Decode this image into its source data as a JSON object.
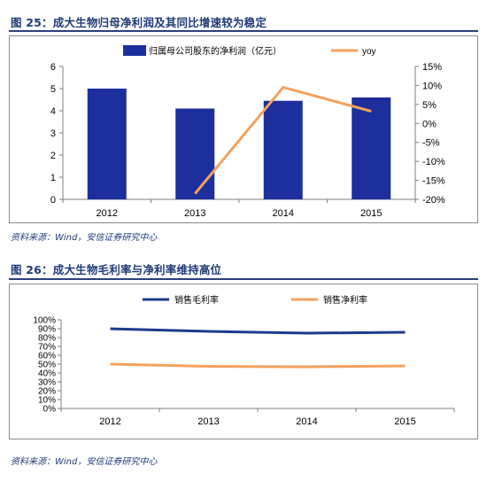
{
  "figures": [
    {
      "title": "图 25：成大生物归母净利润及其同比增速较为稳定",
      "source": "资料来源：Wind，安信证券研究中心"
    },
    {
      "title": "图 26：成大生物毛利率与净利率维持高位",
      "source": "资料来源：Wind，安信证券研究中心"
    }
  ],
  "chart_data": [
    {
      "type": "bar",
      "categories": [
        "2012",
        "2013",
        "2014",
        "2015"
      ],
      "series": [
        {
          "name": "归属母公司股东的净利润（亿元）",
          "type": "bar",
          "axis": "left",
          "values": [
            5.0,
            4.1,
            4.45,
            4.6
          ],
          "color": "#1c2f9c"
        },
        {
          "name": "yoy",
          "type": "line",
          "axis": "right",
          "values": [
            null,
            -18.5,
            9.5,
            3.2
          ],
          "color": "#f5a15c"
        }
      ],
      "left_axis": {
        "ylim": [
          0,
          6
        ],
        "ticks": [
          "0",
          "1",
          "2",
          "3",
          "4",
          "5",
          "6"
        ]
      },
      "right_axis": {
        "ylim": [
          -20,
          15
        ],
        "ticks": [
          "-20%",
          "-15%",
          "-10%",
          "-5%",
          "0%",
          "5%",
          "10%",
          "15%"
        ]
      },
      "legend": "top",
      "grid": false
    },
    {
      "type": "line",
      "categories": [
        "2012",
        "2013",
        "2014",
        "2015"
      ],
      "series": [
        {
          "name": "销售毛利率",
          "values": [
            90,
            87,
            85,
            86
          ],
          "color": "#1d3a8f"
        },
        {
          "name": "销售净利率",
          "values": [
            50,
            47.5,
            47,
            48
          ],
          "color": "#f5a15c"
        }
      ],
      "y_axis": {
        "ylim": [
          0,
          100
        ],
        "ticks": [
          "0%",
          "10%",
          "20%",
          "30%",
          "40%",
          "50%",
          "60%",
          "70%",
          "80%",
          "90%",
          "100%"
        ]
      },
      "legend": "top",
      "grid": false
    }
  ]
}
